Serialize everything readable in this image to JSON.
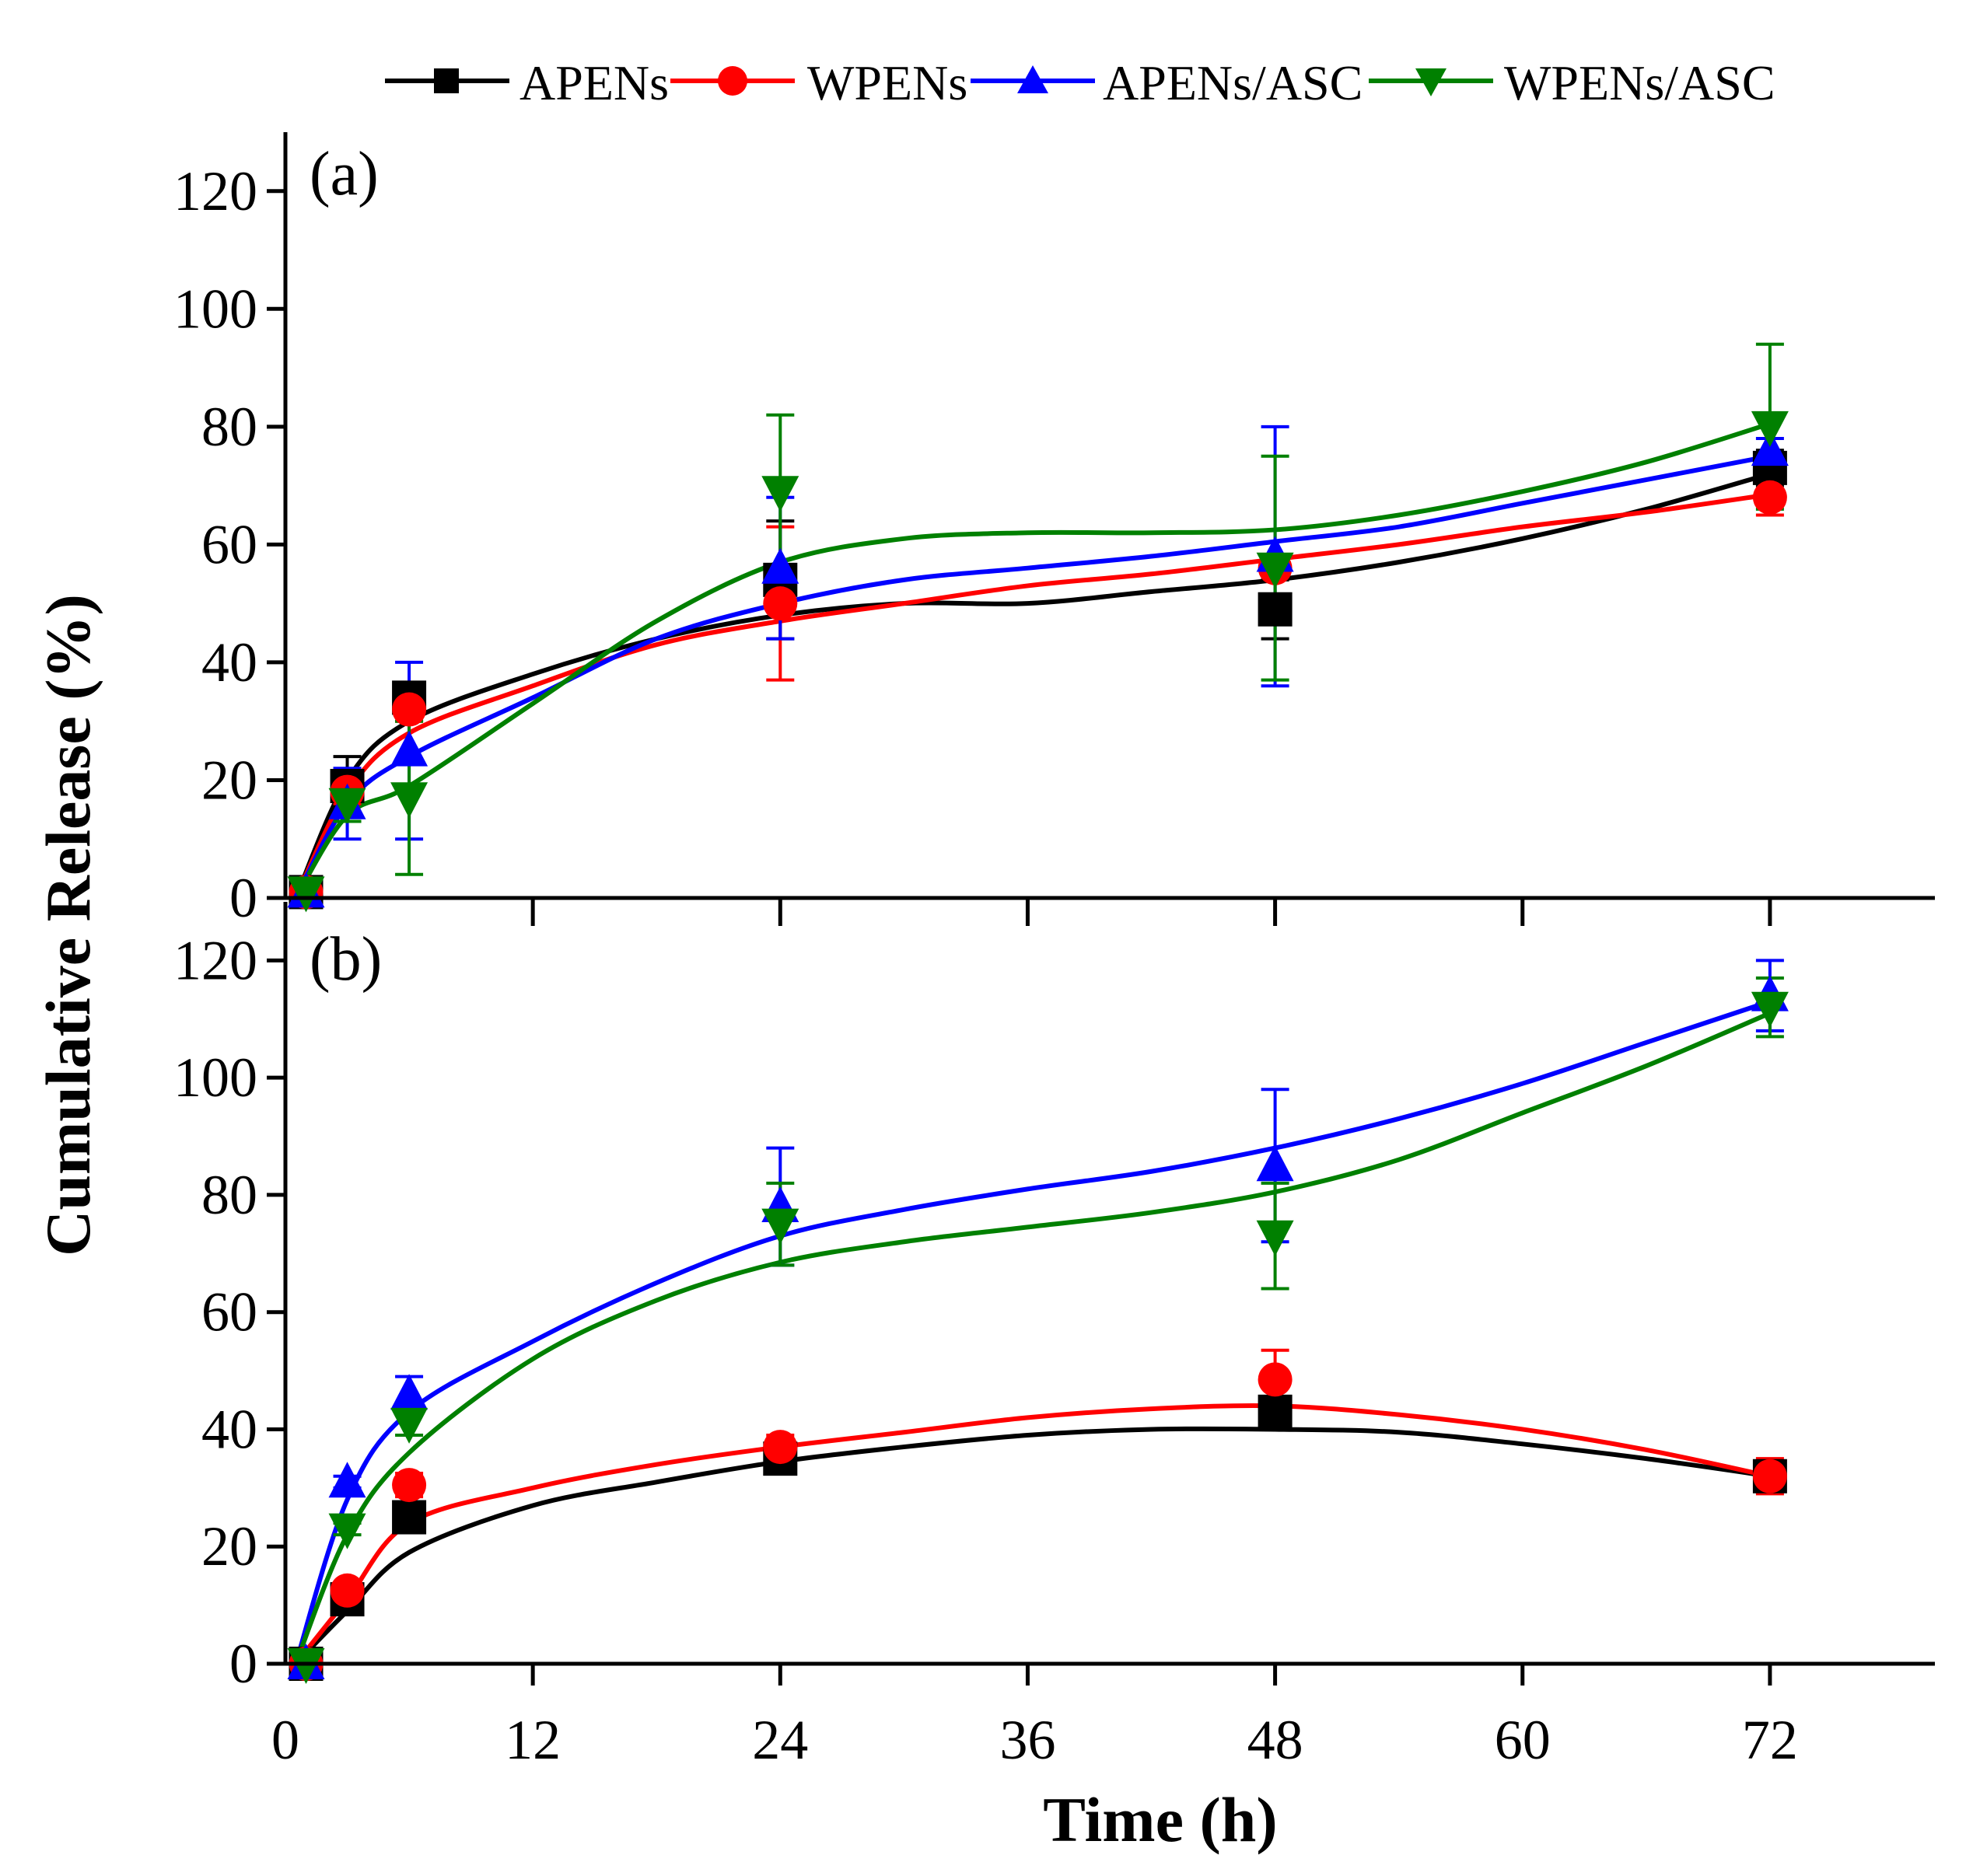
{
  "chart_data": {
    "type": "line",
    "xlabel": "Time (h)",
    "ylabel": "Cumulative Release (%)",
    "xlim": [
      0,
      80
    ],
    "x_ticks": [
      "0",
      "12",
      "24",
      "36",
      "48",
      "60",
      "72"
    ],
    "y_ticks": [
      "0",
      "20",
      "40",
      "60",
      "80",
      "100",
      "120"
    ],
    "legend": {
      "placement": "top",
      "entries": [
        {
          "name": "APENs",
          "color": "#000000",
          "marker": "square"
        },
        {
          "name": "WPENs",
          "color": "#ff0000",
          "marker": "circle"
        },
        {
          "name": "APENs/ASC",
          "color": "#0000ff",
          "marker": "triangle-up"
        },
        {
          "name": "WPENs/ASC",
          "color": "#008000",
          "marker": "triangle-down"
        }
      ]
    },
    "panels": [
      {
        "label": "(a)",
        "ylim": [
          0,
          130
        ],
        "series": [
          {
            "name": "APENs",
            "color": "#000000",
            "marker": "square",
            "points": [
              [
                1,
                1,
                0
              ],
              [
                3,
                19,
                5
              ],
              [
                6,
                34,
                2
              ],
              [
                24,
                54,
                10
              ],
              [
                48,
                49,
                5
              ],
              [
                72,
                73,
                3
              ]
            ],
            "fit": [
              [
                0.5,
                0
              ],
              [
                3,
                20
              ],
              [
                6,
                30
              ],
              [
                12,
                38
              ],
              [
                18,
                44
              ],
              [
                24,
                48
              ],
              [
                30,
                50
              ],
              [
                36,
                50
              ],
              [
                42,
                52
              ],
              [
                48,
                54
              ],
              [
                54,
                57
              ],
              [
                60,
                61
              ],
              [
                66,
                66
              ],
              [
                72,
                72
              ]
            ]
          },
          {
            "name": "WPENs",
            "color": "#ff0000",
            "marker": "circle",
            "points": [
              [
                1,
                1,
                0
              ],
              [
                3,
                18,
                2
              ],
              [
                6,
                32,
                2
              ],
              [
                24,
                50,
                13
              ],
              [
                48,
                56,
                1
              ],
              [
                72,
                68,
                3
              ]
            ],
            "fit": [
              [
                0.5,
                0
              ],
              [
                3,
                18
              ],
              [
                6,
                28
              ],
              [
                12,
                36
              ],
              [
                18,
                43
              ],
              [
                24,
                47
              ],
              [
                30,
                50
              ],
              [
                36,
                53
              ],
              [
                42,
                55
              ],
              [
                48,
                57.5
              ],
              [
                54,
                60
              ],
              [
                60,
                63
              ],
              [
                66,
                65.5
              ],
              [
                72,
                68.5
              ]
            ]
          },
          {
            "name": "APENs/ASC",
            "color": "#0000ff",
            "marker": "triangle-up",
            "points": [
              [
                1,
                1,
                0
              ],
              [
                3,
                16,
                6
              ],
              [
                6,
                25,
                15
              ],
              [
                24,
                56,
                12
              ],
              [
                48,
                58,
                22
              ],
              [
                72,
                76,
                2
              ]
            ],
            "fit": [
              [
                0.5,
                0
              ],
              [
                3,
                16
              ],
              [
                6,
                24
              ],
              [
                12,
                34
              ],
              [
                18,
                44
              ],
              [
                24,
                50
              ],
              [
                30,
                54
              ],
              [
                36,
                56
              ],
              [
                42,
                58
              ],
              [
                48,
                60.5
              ],
              [
                54,
                63
              ],
              [
                60,
                67
              ],
              [
                66,
                71
              ],
              [
                72,
                75
              ]
            ]
          },
          {
            "name": "WPENs/ASC",
            "color": "#008000",
            "marker": "triangle-down",
            "points": [
              [
                1,
                1,
                0
              ],
              [
                3,
                16,
                3
              ],
              [
                6,
                17,
                13
              ],
              [
                24,
                69,
                13
              ],
              [
                48,
                56,
                19
              ],
              [
                72,
                80,
                14
              ]
            ],
            "fit": [
              [
                0.5,
                0
              ],
              [
                3,
                14
              ],
              [
                6,
                19
              ],
              [
                12,
                33
              ],
              [
                18,
                47
              ],
              [
                24,
                57
              ],
              [
                30,
                61
              ],
              [
                36,
                62
              ],
              [
                42,
                62
              ],
              [
                48,
                62.5
              ],
              [
                54,
                65
              ],
              [
                60,
                69
              ],
              [
                66,
                74
              ],
              [
                72,
                80.5
              ]
            ]
          }
        ]
      },
      {
        "label": "(b)",
        "ylim": [
          0,
          130
        ],
        "series": [
          {
            "name": "APENs",
            "color": "#000000",
            "marker": "square",
            "points": [
              [
                1,
                0,
                0
              ],
              [
                3,
                11,
                1
              ],
              [
                6,
                25,
                1
              ],
              [
                24,
                35,
                2
              ],
              [
                48,
                43,
                1
              ],
              [
                72,
                32,
                2
              ]
            ],
            "fit": [
              [
                0.5,
                0
              ],
              [
                3,
                9
              ],
              [
                6,
                19
              ],
              [
                12,
                27
              ],
              [
                18,
                31
              ],
              [
                24,
                34.5
              ],
              [
                30,
                37
              ],
              [
                36,
                39
              ],
              [
                42,
                40
              ],
              [
                48,
                40
              ],
              [
                54,
                39.5
              ],
              [
                60,
                37.5
              ],
              [
                66,
                35
              ],
              [
                72,
                32
              ]
            ]
          },
          {
            "name": "WPENs",
            "color": "#ff0000",
            "marker": "circle",
            "points": [
              [
                1,
                0,
                0
              ],
              [
                3,
                12.5,
                1
              ],
              [
                6,
                30.5,
                2
              ],
              [
                24,
                37,
                2
              ],
              [
                48,
                48.5,
                5
              ],
              [
                72,
                32,
                3
              ]
            ],
            "fit": [
              [
                0.5,
                0
              ],
              [
                3,
                11
              ],
              [
                6,
                24
              ],
              [
                12,
                30
              ],
              [
                18,
                34
              ],
              [
                24,
                37
              ],
              [
                30,
                39.5
              ],
              [
                36,
                42
              ],
              [
                42,
                43.5
              ],
              [
                48,
                44
              ],
              [
                54,
                42.5
              ],
              [
                60,
                40
              ],
              [
                66,
                36.5
              ],
              [
                72,
                32
              ]
            ]
          },
          {
            "name": "APENs/ASC",
            "color": "#0000ff",
            "marker": "triangle-up",
            "points": [
              [
                1,
                0,
                0
              ],
              [
                3,
                31,
                1
              ],
              [
                6,
                46,
                3
              ],
              [
                24,
                78,
                10
              ],
              [
                48,
                85,
                13
              ],
              [
                72,
                114,
                6
              ]
            ],
            "fit": [
              [
                0.5,
                0
              ],
              [
                3,
                28
              ],
              [
                6,
                43
              ],
              [
                12,
                55
              ],
              [
                18,
                65
              ],
              [
                24,
                73
              ],
              [
                30,
                77.5
              ],
              [
                36,
                81
              ],
              [
                42,
                84
              ],
              [
                48,
                88
              ],
              [
                54,
                93
              ],
              [
                60,
                99
              ],
              [
                66,
                106
              ],
              [
                72,
                113
              ]
            ]
          },
          {
            "name": "WPENs/ASC",
            "color": "#008000",
            "marker": "triangle-down",
            "points": [
              [
                1,
                0,
                0
              ],
              [
                3,
                23,
                1
              ],
              [
                6,
                41,
                2
              ],
              [
                24,
                75,
                7
              ],
              [
                48,
                73,
                9
              ],
              [
                72,
                112,
                5
              ]
            ],
            "fit": [
              [
                0.5,
                0
              ],
              [
                3,
                22
              ],
              [
                6,
                36
              ],
              [
                12,
                52
              ],
              [
                18,
                62
              ],
              [
                24,
                68.5
              ],
              [
                30,
                72
              ],
              [
                36,
                74.5
              ],
              [
                42,
                77
              ],
              [
                48,
                80.5
              ],
              [
                54,
                86
              ],
              [
                60,
                94
              ],
              [
                66,
                102
              ],
              [
                72,
                111
              ]
            ]
          }
        ]
      }
    ]
  }
}
